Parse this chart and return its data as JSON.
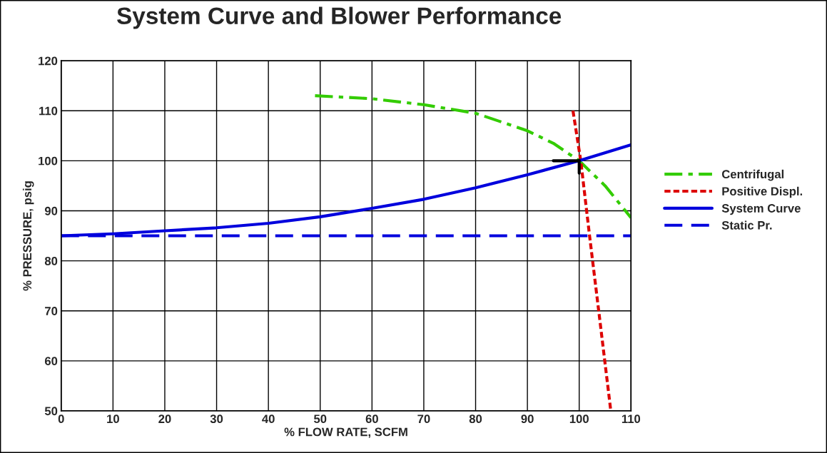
{
  "chart_data": {
    "type": "line",
    "title": "System Curve and Blower Performance",
    "xlabel": "% FLOW RATE, SCFM",
    "ylabel": "% PRESSURE, psig",
    "xlim": [
      0,
      110
    ],
    "xticks": [
      0,
      10,
      20,
      30,
      40,
      50,
      60,
      70,
      80,
      90,
      100,
      110
    ],
    "ylim": [
      50,
      120
    ],
    "yticks": [
      50,
      60,
      70,
      80,
      90,
      100,
      110,
      120
    ],
    "grid": true,
    "legend": "right",
    "marker": "none",
    "series": [
      {
        "name": "Centrifugal",
        "color": "#33cc00",
        "line_style": "dashdot",
        "x": [
          49,
          60,
          70,
          80,
          90,
          95,
          100,
          105,
          110
        ],
        "values": [
          113,
          112.4,
          111.2,
          109.5,
          106,
          103.5,
          100,
          95,
          88.6
        ]
      },
      {
        "name": "Positive Displ.",
        "color": "#dd0000",
        "line_style": "dotted",
        "x": [
          98.8,
          100.3,
          102,
          104,
          106.1
        ],
        "values": [
          110,
          100,
          85,
          68,
          50
        ]
      },
      {
        "name": "System Curve",
        "color": "#0000dd",
        "line_style": "solid",
        "x": [
          0,
          10,
          20,
          30,
          40,
          50,
          60,
          70,
          80,
          90,
          100,
          110
        ],
        "values": [
          85,
          85.4,
          86,
          86.6,
          87.5,
          88.8,
          90.5,
          92.3,
          94.6,
          97.2,
          100,
          103.2
        ]
      },
      {
        "name": "Static Pr.",
        "color": "#0000dd",
        "line_style": "dashed",
        "x": [
          0,
          110
        ],
        "values": [
          85,
          85
        ]
      },
      {
        "color": "#000000",
        "line_style": "solid",
        "x": [
          95,
          100
        ],
        "values": [
          100,
          100
        ]
      },
      {
        "color": "#000000",
        "line_style": "solid",
        "x": [
          100,
          100
        ],
        "values": [
          100,
          97.5
        ]
      }
    ]
  }
}
